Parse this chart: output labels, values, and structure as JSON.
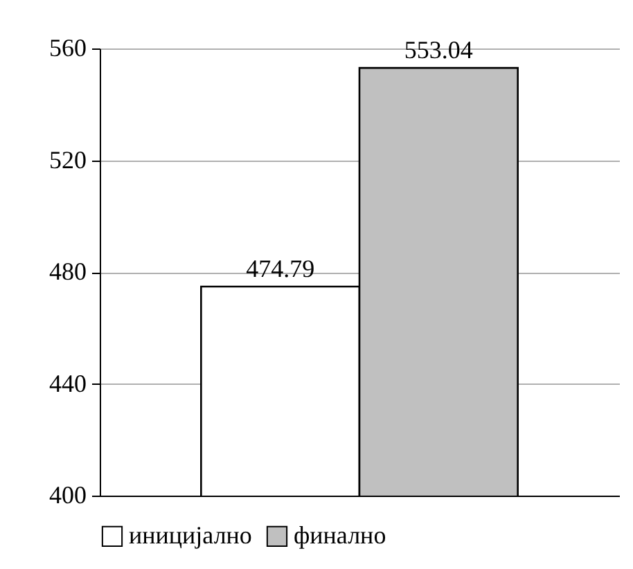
{
  "chart_data": {
    "type": "bar",
    "categories": [
      null,
      null
    ],
    "series": [
      {
        "name": "иницијално",
        "color": "#ffffff",
        "values": [
          474.79,
          null
        ]
      },
      {
        "name": "финално",
        "color": "#c0c0c0",
        "values": [
          null,
          553.04
        ]
      }
    ],
    "ylim": [
      400,
      560
    ],
    "yticks": [
      400,
      440,
      480,
      520,
      560
    ],
    "grid": "y",
    "data_labels": true,
    "legend": "bottom",
    "tick_labels": "y"
  }
}
